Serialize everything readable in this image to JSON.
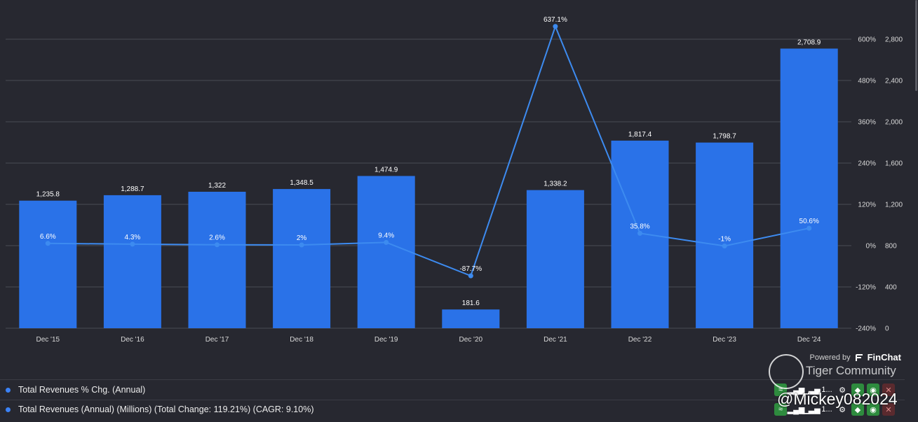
{
  "chart_data": {
    "type": "bar",
    "categories": [
      "Dec '15",
      "Dec '16",
      "Dec '17",
      "Dec '18",
      "Dec '19",
      "Dec '20",
      "Dec '21",
      "Dec '22",
      "Dec '23",
      "Dec '24"
    ],
    "series": [
      {
        "name": "Total Revenues (Annual) (Millions)",
        "type": "bar",
        "axis": "right",
        "values": [
          1235.8,
          1288.7,
          1322,
          1348.5,
          1474.9,
          181.6,
          1338.2,
          1817.4,
          1798.7,
          2708.9
        ],
        "labels": [
          "1,235.8",
          "1,288.7",
          "1,322",
          "1,348.5",
          "1,474.9",
          "181.6",
          "1,338.2",
          "1,817.4",
          "1,798.7",
          "2,708.9"
        ],
        "color": "#2a72e8"
      },
      {
        "name": "Total Revenues % Chg. (Annual)",
        "type": "line",
        "axis": "left",
        "values": [
          6.6,
          4.3,
          2.6,
          2,
          9.4,
          -87.7,
          637.1,
          35.8,
          -1,
          50.6
        ],
        "labels": [
          "6.6%",
          "4.3%",
          "2.6%",
          "2%",
          "9.4%",
          "-87.7%",
          "637.1%",
          "35.8%",
          "-1%",
          "50.6%"
        ],
        "color": "#3d8bf0"
      }
    ],
    "right_axis": {
      "range": [
        0,
        2800
      ],
      "ticks": [
        "0",
        "400",
        "800",
        "1,200",
        "1,600",
        "2,000",
        "2,400",
        "2,800"
      ]
    },
    "pct_axis": {
      "range": [
        -240,
        600
      ],
      "ticks": [
        "-240%",
        "-120%",
        "0%",
        "120%",
        "240%",
        "360%",
        "480%",
        "600%"
      ]
    },
    "grid": true
  },
  "legend": [
    {
      "label": "Total Revenues % Chg. (Annual)",
      "color": "#3b82f6"
    },
    {
      "label": "Total Revenues (Annual) (Millions) (Total Change: 119.21%) (CAGR: 9.10%)",
      "color": "#3b82f6"
    }
  ],
  "branding": {
    "powered_by": "Powered by",
    "brand": "FinChat"
  },
  "watermark": {
    "community": "Tiger Community",
    "user": "@Mickey082024"
  },
  "toolbar": {
    "more_label": "1..."
  }
}
